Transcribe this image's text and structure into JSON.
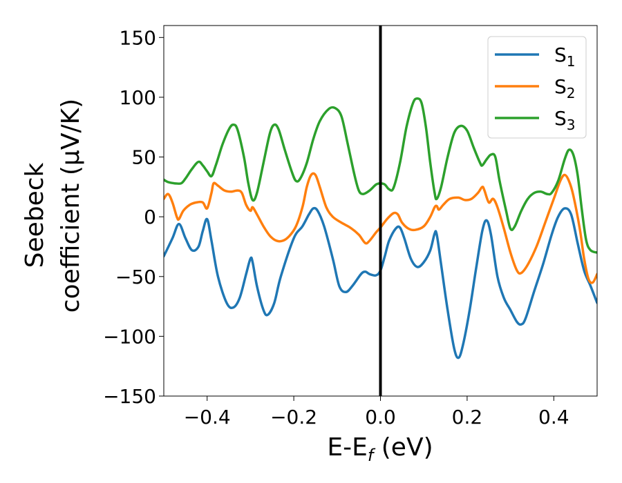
{
  "chart_data": {
    "type": "line",
    "xlabel": {
      "main": "E-E",
      "sub": "f",
      "tail": " (eV)"
    },
    "ylabel": {
      "line1": "Seebeck",
      "line2": "coefficient  (μV/K)"
    },
    "xlim": [
      -0.5,
      0.5
    ],
    "ylim": [
      -150,
      160
    ],
    "xticks": [
      -0.4,
      -0.2,
      0.0,
      0.2,
      0.4
    ],
    "xtick_labels": [
      "−0.4",
      "−0.2",
      "0.0",
      "0.2",
      "0.4"
    ],
    "yticks": [
      -150,
      -100,
      -50,
      0,
      50,
      100,
      150
    ],
    "ytick_labels": [
      "−150",
      "−100",
      "−50",
      "0",
      "50",
      "100",
      "150"
    ],
    "vline": {
      "x": 0.0,
      "color": "#000000"
    },
    "legend_position": "top-right",
    "grid": false,
    "series": [
      {
        "name": "S",
        "sub": "1",
        "color": "#1f77b4",
        "points": [
          [
            -0.5,
            -33
          ],
          [
            -0.48,
            -18
          ],
          [
            -0.465,
            -6
          ],
          [
            -0.45,
            -18
          ],
          [
            -0.435,
            -28
          ],
          [
            -0.42,
            -25
          ],
          [
            -0.41,
            -12
          ],
          [
            -0.4,
            -2
          ],
          [
            -0.39,
            -20
          ],
          [
            -0.375,
            -50
          ],
          [
            -0.355,
            -72
          ],
          [
            -0.34,
            -76
          ],
          [
            -0.325,
            -68
          ],
          [
            -0.31,
            -48
          ],
          [
            -0.3,
            -35
          ],
          [
            -0.295,
            -38
          ],
          [
            -0.285,
            -58
          ],
          [
            -0.27,
            -78
          ],
          [
            -0.26,
            -82
          ],
          [
            -0.245,
            -72
          ],
          [
            -0.23,
            -50
          ],
          [
            -0.2,
            -18
          ],
          [
            -0.18,
            -8
          ],
          [
            -0.165,
            2
          ],
          [
            -0.155,
            7
          ],
          [
            -0.145,
            5
          ],
          [
            -0.13,
            -8
          ],
          [
            -0.11,
            -35
          ],
          [
            -0.095,
            -58
          ],
          [
            -0.08,
            -63
          ],
          [
            -0.065,
            -58
          ],
          [
            -0.045,
            -48
          ],
          [
            -0.035,
            -46
          ],
          [
            -0.025,
            -48
          ],
          [
            -0.01,
            -49
          ],
          [
            0.0,
            -45
          ],
          [
            0.01,
            -33
          ],
          [
            0.02,
            -20
          ],
          [
            0.035,
            -10
          ],
          [
            0.045,
            -9
          ],
          [
            0.055,
            -18
          ],
          [
            0.07,
            -35
          ],
          [
            0.085,
            -42
          ],
          [
            0.1,
            -38
          ],
          [
            0.115,
            -28
          ],
          [
            0.125,
            -14
          ],
          [
            0.13,
            -15
          ],
          [
            0.14,
            -40
          ],
          [
            0.155,
            -78
          ],
          [
            0.17,
            -110
          ],
          [
            0.18,
            -118
          ],
          [
            0.19,
            -108
          ],
          [
            0.205,
            -80
          ],
          [
            0.22,
            -45
          ],
          [
            0.235,
            -12
          ],
          [
            0.245,
            -3
          ],
          [
            0.255,
            -15
          ],
          [
            0.27,
            -50
          ],
          [
            0.285,
            -68
          ],
          [
            0.3,
            -78
          ],
          [
            0.315,
            -88
          ],
          [
            0.325,
            -90
          ],
          [
            0.335,
            -85
          ],
          [
            0.355,
            -62
          ],
          [
            0.375,
            -40
          ],
          [
            0.395,
            -15
          ],
          [
            0.41,
            0
          ],
          [
            0.425,
            7
          ],
          [
            0.44,
            2
          ],
          [
            0.455,
            -22
          ],
          [
            0.47,
            -45
          ],
          [
            0.485,
            -58
          ],
          [
            0.5,
            -72
          ]
        ]
      },
      {
        "name": "S",
        "sub": "2",
        "color": "#ff7f0e",
        "points": [
          [
            -0.5,
            15
          ],
          [
            -0.49,
            19
          ],
          [
            -0.48,
            12
          ],
          [
            -0.47,
            0
          ],
          [
            -0.465,
            -2
          ],
          [
            -0.455,
            5
          ],
          [
            -0.44,
            10
          ],
          [
            -0.425,
            12
          ],
          [
            -0.41,
            12
          ],
          [
            -0.4,
            7
          ],
          [
            -0.39,
            20
          ],
          [
            -0.385,
            28
          ],
          [
            -0.375,
            26
          ],
          [
            -0.36,
            22
          ],
          [
            -0.345,
            21
          ],
          [
            -0.33,
            22
          ],
          [
            -0.32,
            20
          ],
          [
            -0.31,
            10
          ],
          [
            -0.3,
            5
          ],
          [
            -0.295,
            8
          ],
          [
            -0.285,
            2
          ],
          [
            -0.27,
            -8
          ],
          [
            -0.255,
            -16
          ],
          [
            -0.24,
            -20
          ],
          [
            -0.225,
            -20
          ],
          [
            -0.21,
            -16
          ],
          [
            -0.195,
            -8
          ],
          [
            -0.18,
            8
          ],
          [
            -0.17,
            25
          ],
          [
            -0.16,
            35
          ],
          [
            -0.15,
            35
          ],
          [
            -0.14,
            25
          ],
          [
            -0.125,
            8
          ],
          [
            -0.11,
            0
          ],
          [
            -0.09,
            -5
          ],
          [
            -0.07,
            -9
          ],
          [
            -0.05,
            -15
          ],
          [
            -0.035,
            -22
          ],
          [
            -0.025,
            -20
          ],
          [
            -0.01,
            -13
          ],
          [
            0.0,
            -9
          ],
          [
            0.015,
            -2
          ],
          [
            0.03,
            3
          ],
          [
            0.04,
            2
          ],
          [
            0.05,
            -5
          ],
          [
            0.065,
            -10
          ],
          [
            0.08,
            -11
          ],
          [
            0.1,
            -8
          ],
          [
            0.115,
            0
          ],
          [
            0.125,
            8
          ],
          [
            0.13,
            9
          ],
          [
            0.135,
            6
          ],
          [
            0.145,
            10
          ],
          [
            0.16,
            15
          ],
          [
            0.18,
            16
          ],
          [
            0.195,
            14
          ],
          [
            0.21,
            15
          ],
          [
            0.225,
            20
          ],
          [
            0.235,
            25
          ],
          [
            0.24,
            22
          ],
          [
            0.25,
            12
          ],
          [
            0.26,
            15
          ],
          [
            0.27,
            8
          ],
          [
            0.285,
            -10
          ],
          [
            0.3,
            -30
          ],
          [
            0.315,
            -45
          ],
          [
            0.325,
            -47
          ],
          [
            0.34,
            -40
          ],
          [
            0.36,
            -25
          ],
          [
            0.38,
            -5
          ],
          [
            0.4,
            15
          ],
          [
            0.415,
            30
          ],
          [
            0.425,
            35
          ],
          [
            0.435,
            30
          ],
          [
            0.445,
            18
          ],
          [
            0.46,
            -10
          ],
          [
            0.47,
            -35
          ],
          [
            0.48,
            -52
          ],
          [
            0.49,
            -55
          ],
          [
            0.5,
            -48
          ]
        ]
      },
      {
        "name": "S",
        "sub": "3",
        "color": "#2ca02c",
        "points": [
          [
            -0.5,
            31
          ],
          [
            -0.49,
            29
          ],
          [
            -0.475,
            28
          ],
          [
            -0.46,
            28
          ],
          [
            -0.45,
            32
          ],
          [
            -0.435,
            40
          ],
          [
            -0.42,
            46
          ],
          [
            -0.41,
            43
          ],
          [
            -0.4,
            38
          ],
          [
            -0.39,
            34
          ],
          [
            -0.38,
            43
          ],
          [
            -0.365,
            60
          ],
          [
            -0.35,
            73
          ],
          [
            -0.34,
            77
          ],
          [
            -0.33,
            73
          ],
          [
            -0.315,
            50
          ],
          [
            -0.305,
            28
          ],
          [
            -0.295,
            14
          ],
          [
            -0.285,
            20
          ],
          [
            -0.27,
            45
          ],
          [
            -0.255,
            70
          ],
          [
            -0.245,
            77
          ],
          [
            -0.235,
            73
          ],
          [
            -0.22,
            55
          ],
          [
            -0.205,
            38
          ],
          [
            -0.195,
            30
          ],
          [
            -0.185,
            32
          ],
          [
            -0.17,
            45
          ],
          [
            -0.155,
            65
          ],
          [
            -0.14,
            80
          ],
          [
            -0.12,
            90
          ],
          [
            -0.105,
            91
          ],
          [
            -0.09,
            84
          ],
          [
            -0.075,
            60
          ],
          [
            -0.06,
            35
          ],
          [
            -0.05,
            22
          ],
          [
            -0.04,
            19
          ],
          [
            -0.025,
            22
          ],
          [
            -0.01,
            27
          ],
          [
            0.0,
            28
          ],
          [
            0.01,
            27
          ],
          [
            0.02,
            23
          ],
          [
            0.03,
            24
          ],
          [
            0.045,
            45
          ],
          [
            0.06,
            75
          ],
          [
            0.075,
            95
          ],
          [
            0.085,
            99
          ],
          [
            0.095,
            95
          ],
          [
            0.105,
            75
          ],
          [
            0.115,
            45
          ],
          [
            0.125,
            20
          ],
          [
            0.13,
            15
          ],
          [
            0.14,
            25
          ],
          [
            0.155,
            50
          ],
          [
            0.17,
            70
          ],
          [
            0.185,
            76
          ],
          [
            0.2,
            72
          ],
          [
            0.215,
            58
          ],
          [
            0.23,
            45
          ],
          [
            0.235,
            43
          ],
          [
            0.245,
            48
          ],
          [
            0.255,
            52
          ],
          [
            0.265,
            50
          ],
          [
            0.275,
            30
          ],
          [
            0.29,
            5
          ],
          [
            0.3,
            -10
          ],
          [
            0.31,
            -8
          ],
          [
            0.325,
            5
          ],
          [
            0.34,
            15
          ],
          [
            0.355,
            20
          ],
          [
            0.37,
            21
          ],
          [
            0.385,
            19
          ],
          [
            0.395,
            20
          ],
          [
            0.41,
            30
          ],
          [
            0.425,
            48
          ],
          [
            0.435,
            56
          ],
          [
            0.445,
            52
          ],
          [
            0.455,
            35
          ],
          [
            0.465,
            5
          ],
          [
            0.475,
            -20
          ],
          [
            0.485,
            -28
          ],
          [
            0.5,
            -30
          ]
        ]
      }
    ]
  }
}
